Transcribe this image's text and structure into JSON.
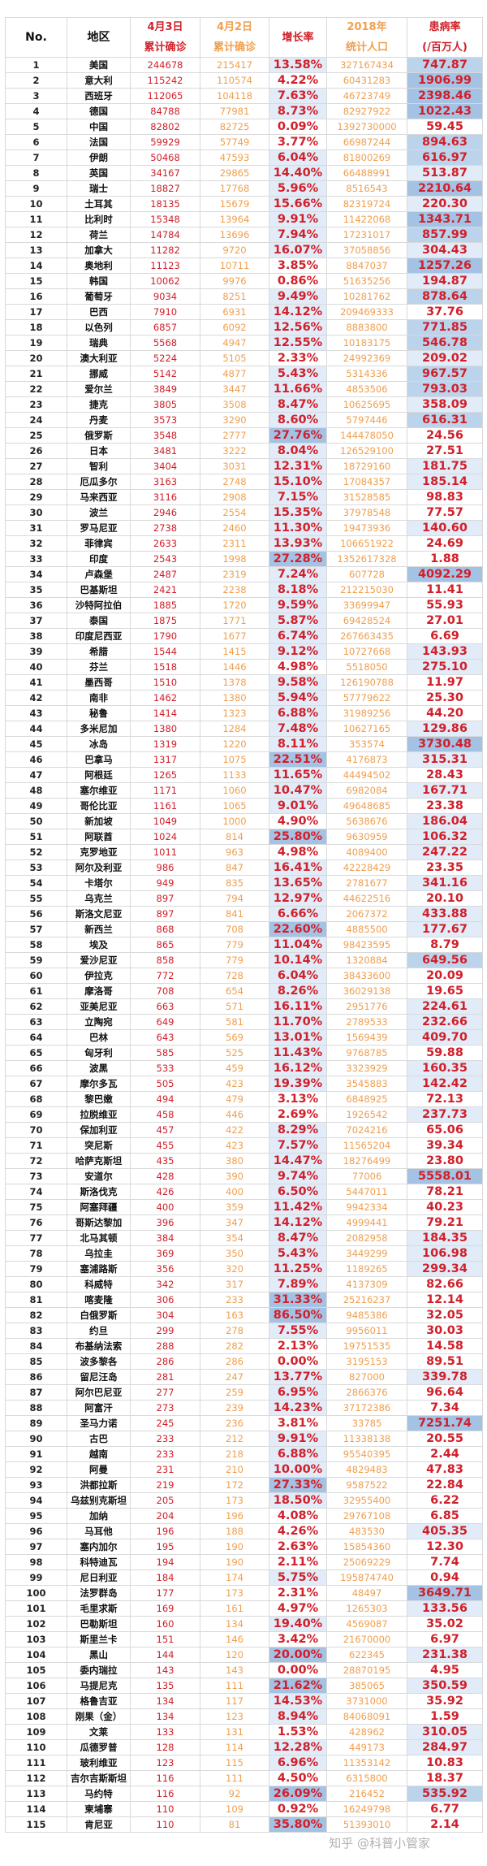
{
  "header": {
    "no": "No.",
    "region": "地区",
    "apr3_date": "4月3日",
    "apr3_label": "累计确诊",
    "apr2_date": "4月2日",
    "apr2_label": "累计确诊",
    "growth": "增长率",
    "pop_year": "2018年",
    "pop_label": "统计人口",
    "rate": "患病率",
    "rate_unit": "(/百万人)"
  },
  "colors": {
    "red_text": "#d0202a",
    "orange_text": "#ef9f4f",
    "shade_dark": "#a4c2e4",
    "shade_mid": "#bcd3ec",
    "shade_light": "#e1ecf8"
  },
  "columns": [
    "no",
    "region",
    "apr3_confirmed",
    "apr2_confirmed",
    "growth_rate",
    "population_2018",
    "cases_per_million"
  ],
  "rows": [
    [
      "1",
      "美国",
      "244678",
      "215417",
      "13.58%",
      "327167434",
      "747.87"
    ],
    [
      "2",
      "意大利",
      "115242",
      "110574",
      "4.22%",
      "60431283",
      "1906.99"
    ],
    [
      "3",
      "西班牙",
      "112065",
      "104118",
      "7.63%",
      "46723749",
      "2398.46"
    ],
    [
      "4",
      "德国",
      "84788",
      "77981",
      "8.73%",
      "82927922",
      "1022.43"
    ],
    [
      "5",
      "中国",
      "82802",
      "82725",
      "0.09%",
      "1392730000",
      "59.45"
    ],
    [
      "6",
      "法国",
      "59929",
      "57749",
      "3.77%",
      "66987244",
      "894.63"
    ],
    [
      "7",
      "伊朗",
      "50468",
      "47593",
      "6.04%",
      "81800269",
      "616.97"
    ],
    [
      "8",
      "英国",
      "34167",
      "29865",
      "14.40%",
      "66488991",
      "513.87"
    ],
    [
      "9",
      "瑞士",
      "18827",
      "17768",
      "5.96%",
      "8516543",
      "2210.64"
    ],
    [
      "10",
      "土耳其",
      "18135",
      "15679",
      "15.66%",
      "82319724",
      "220.30"
    ],
    [
      "11",
      "比利时",
      "15348",
      "13964",
      "9.91%",
      "11422068",
      "1343.71"
    ],
    [
      "12",
      "荷兰",
      "14784",
      "13696",
      "7.94%",
      "17231017",
      "857.99"
    ],
    [
      "13",
      "加拿大",
      "11282",
      "9720",
      "16.07%",
      "37058856",
      "304.43"
    ],
    [
      "14",
      "奥地利",
      "11123",
      "10711",
      "3.85%",
      "8847037",
      "1257.26"
    ],
    [
      "15",
      "韩国",
      "10062",
      "9976",
      "0.86%",
      "51635256",
      "194.87"
    ],
    [
      "16",
      "葡萄牙",
      "9034",
      "8251",
      "9.49%",
      "10281762",
      "878.64"
    ],
    [
      "17",
      "巴西",
      "7910",
      "6931",
      "14.12%",
      "209469333",
      "37.76"
    ],
    [
      "18",
      "以色列",
      "6857",
      "6092",
      "12.56%",
      "8883800",
      "771.85"
    ],
    [
      "19",
      "瑞典",
      "5568",
      "4947",
      "12.55%",
      "10183175",
      "546.78"
    ],
    [
      "20",
      "澳大利亚",
      "5224",
      "5105",
      "2.33%",
      "24992369",
      "209.02"
    ],
    [
      "21",
      "挪威",
      "5142",
      "4877",
      "5.43%",
      "5314336",
      "967.57"
    ],
    [
      "22",
      "爱尔兰",
      "3849",
      "3447",
      "11.66%",
      "4853506",
      "793.03"
    ],
    [
      "23",
      "捷克",
      "3805",
      "3508",
      "8.47%",
      "10625695",
      "358.09"
    ],
    [
      "24",
      "丹麦",
      "3573",
      "3290",
      "8.60%",
      "5797446",
      "616.31"
    ],
    [
      "25",
      "俄罗斯",
      "3548",
      "2777",
      "27.76%",
      "144478050",
      "24.56"
    ],
    [
      "26",
      "日本",
      "3481",
      "3222",
      "8.04%",
      "126529100",
      "27.51"
    ],
    [
      "27",
      "智利",
      "3404",
      "3031",
      "12.31%",
      "18729160",
      "181.75"
    ],
    [
      "28",
      "厄瓜多尔",
      "3163",
      "2748",
      "15.10%",
      "17084357",
      "185.14"
    ],
    [
      "29",
      "马来西亚",
      "3116",
      "2908",
      "7.15%",
      "31528585",
      "98.83"
    ],
    [
      "30",
      "波兰",
      "2946",
      "2554",
      "15.35%",
      "37978548",
      "77.57"
    ],
    [
      "31",
      "罗马尼亚",
      "2738",
      "2460",
      "11.30%",
      "19473936",
      "140.60"
    ],
    [
      "32",
      "菲律宾",
      "2633",
      "2311",
      "13.93%",
      "106651922",
      "24.69"
    ],
    [
      "33",
      "印度",
      "2543",
      "1998",
      "27.28%",
      "1352617328",
      "1.88"
    ],
    [
      "34",
      "卢森堡",
      "2487",
      "2319",
      "7.24%",
      "607728",
      "4092.29"
    ],
    [
      "35",
      "巴基斯坦",
      "2421",
      "2238",
      "8.18%",
      "212215030",
      "11.41"
    ],
    [
      "36",
      "沙特阿拉伯",
      "1885",
      "1720",
      "9.59%",
      "33699947",
      "55.93"
    ],
    [
      "37",
      "泰国",
      "1875",
      "1771",
      "5.87%",
      "69428524",
      "27.01"
    ],
    [
      "38",
      "印度尼西亚",
      "1790",
      "1677",
      "6.74%",
      "267663435",
      "6.69"
    ],
    [
      "39",
      "希腊",
      "1544",
      "1415",
      "9.12%",
      "10727668",
      "143.93"
    ],
    [
      "40",
      "芬兰",
      "1518",
      "1446",
      "4.98%",
      "5518050",
      "275.10"
    ],
    [
      "41",
      "墨西哥",
      "1510",
      "1378",
      "9.58%",
      "126190788",
      "11.97"
    ],
    [
      "42",
      "南非",
      "1462",
      "1380",
      "5.94%",
      "57779622",
      "25.30"
    ],
    [
      "43",
      "秘鲁",
      "1414",
      "1323",
      "6.88%",
      "31989256",
      "44.20"
    ],
    [
      "44",
      "多米尼加",
      "1380",
      "1284",
      "7.48%",
      "10627165",
      "129.86"
    ],
    [
      "45",
      "冰岛",
      "1319",
      "1220",
      "8.11%",
      "353574",
      "3730.48"
    ],
    [
      "46",
      "巴拿马",
      "1317",
      "1075",
      "22.51%",
      "4176873",
      "315.31"
    ],
    [
      "47",
      "阿根廷",
      "1265",
      "1133",
      "11.65%",
      "44494502",
      "28.43"
    ],
    [
      "48",
      "塞尔维亚",
      "1171",
      "1060",
      "10.47%",
      "6982084",
      "167.71"
    ],
    [
      "49",
      "哥伦比亚",
      "1161",
      "1065",
      "9.01%",
      "49648685",
      "23.38"
    ],
    [
      "50",
      "新加坡",
      "1049",
      "1000",
      "4.90%",
      "5638676",
      "186.04"
    ],
    [
      "51",
      "阿联酋",
      "1024",
      "814",
      "25.80%",
      "9630959",
      "106.32"
    ],
    [
      "52",
      "克罗地亚",
      "1011",
      "963",
      "4.98%",
      "4089400",
      "247.22"
    ],
    [
      "53",
      "阿尔及利亚",
      "986",
      "847",
      "16.41%",
      "42228429",
      "23.35"
    ],
    [
      "54",
      "卡塔尔",
      "949",
      "835",
      "13.65%",
      "2781677",
      "341.16"
    ],
    [
      "55",
      "乌克兰",
      "897",
      "794",
      "12.97%",
      "44622516",
      "20.10"
    ],
    [
      "56",
      "斯洛文尼亚",
      "897",
      "841",
      "6.66%",
      "2067372",
      "433.88"
    ],
    [
      "57",
      "新西兰",
      "868",
      "708",
      "22.60%",
      "4885500",
      "177.67"
    ],
    [
      "58",
      "埃及",
      "865",
      "779",
      "11.04%",
      "98423595",
      "8.79"
    ],
    [
      "59",
      "爱沙尼亚",
      "858",
      "779",
      "10.14%",
      "1320884",
      "649.56"
    ],
    [
      "60",
      "伊拉克",
      "772",
      "728",
      "6.04%",
      "38433600",
      "20.09"
    ],
    [
      "61",
      "摩洛哥",
      "708",
      "654",
      "8.26%",
      "36029138",
      "19.65"
    ],
    [
      "62",
      "亚美尼亚",
      "663",
      "571",
      "16.11%",
      "2951776",
      "224.61"
    ],
    [
      "63",
      "立陶宛",
      "649",
      "581",
      "11.70%",
      "2789533",
      "232.66"
    ],
    [
      "64",
      "巴林",
      "643",
      "569",
      "13.01%",
      "1569439",
      "409.70"
    ],
    [
      "65",
      "匈牙利",
      "585",
      "525",
      "11.43%",
      "9768785",
      "59.88"
    ],
    [
      "66",
      "波黑",
      "533",
      "459",
      "16.12%",
      "3323929",
      "160.35"
    ],
    [
      "67",
      "摩尔多瓦",
      "505",
      "423",
      "19.39%",
      "3545883",
      "142.42"
    ],
    [
      "68",
      "黎巴嫩",
      "494",
      "479",
      "3.13%",
      "6848925",
      "72.13"
    ],
    [
      "69",
      "拉脱维亚",
      "458",
      "446",
      "2.69%",
      "1926542",
      "237.73"
    ],
    [
      "70",
      "保加利亚",
      "457",
      "422",
      "8.29%",
      "7024216",
      "65.06"
    ],
    [
      "71",
      "突尼斯",
      "455",
      "423",
      "7.57%",
      "11565204",
      "39.34"
    ],
    [
      "72",
      "哈萨克斯坦",
      "435",
      "380",
      "14.47%",
      "18276499",
      "23.80"
    ],
    [
      "73",
      "安道尔",
      "428",
      "390",
      "9.74%",
      "77006",
      "5558.01"
    ],
    [
      "74",
      "斯洛伐克",
      "426",
      "400",
      "6.50%",
      "5447011",
      "78.21"
    ],
    [
      "75",
      "阿塞拜疆",
      "400",
      "359",
      "11.42%",
      "9942334",
      "40.23"
    ],
    [
      "76",
      "哥斯达黎加",
      "396",
      "347",
      "14.12%",
      "4999441",
      "79.21"
    ],
    [
      "77",
      "北马其顿",
      "384",
      "354",
      "8.47%",
      "2082958",
      "184.35"
    ],
    [
      "78",
      "乌拉圭",
      "369",
      "350",
      "5.43%",
      "3449299",
      "106.98"
    ],
    [
      "79",
      "塞浦路斯",
      "356",
      "320",
      "11.25%",
      "1189265",
      "299.34"
    ],
    [
      "80",
      "科威特",
      "342",
      "317",
      "7.89%",
      "4137309",
      "82.66"
    ],
    [
      "81",
      "喀麦隆",
      "306",
      "233",
      "31.33%",
      "25216237",
      "12.14"
    ],
    [
      "82",
      "白俄罗斯",
      "304",
      "163",
      "86.50%",
      "9485386",
      "32.05"
    ],
    [
      "83",
      "约旦",
      "299",
      "278",
      "7.55%",
      "9956011",
      "30.03"
    ],
    [
      "84",
      "布基纳法索",
      "288",
      "282",
      "2.13%",
      "19751535",
      "14.58"
    ],
    [
      "85",
      "波多黎各",
      "286",
      "286",
      "0.00%",
      "3195153",
      "89.51"
    ],
    [
      "86",
      "留尼汪岛",
      "281",
      "247",
      "13.77%",
      "827000",
      "339.78"
    ],
    [
      "87",
      "阿尔巴尼亚",
      "277",
      "259",
      "6.95%",
      "2866376",
      "96.64"
    ],
    [
      "88",
      "阿富汗",
      "273",
      "239",
      "14.23%",
      "37172386",
      "7.34"
    ],
    [
      "89",
      "圣马力诺",
      "245",
      "236",
      "3.81%",
      "33785",
      "7251.74"
    ],
    [
      "90",
      "古巴",
      "233",
      "212",
      "9.91%",
      "11338138",
      "20.55"
    ],
    [
      "91",
      "越南",
      "233",
      "218",
      "6.88%",
      "95540395",
      "2.44"
    ],
    [
      "92",
      "阿曼",
      "231",
      "210",
      "10.00%",
      "4829483",
      "47.83"
    ],
    [
      "93",
      "洪都拉斯",
      "219",
      "172",
      "27.33%",
      "9587522",
      "22.84"
    ],
    [
      "94",
      "乌兹别克斯坦",
      "205",
      "173",
      "18.50%",
      "32955400",
      "6.22"
    ],
    [
      "95",
      "加纳",
      "204",
      "196",
      "4.08%",
      "29767108",
      "6.85"
    ],
    [
      "96",
      "马耳他",
      "196",
      "188",
      "4.26%",
      "483530",
      "405.35"
    ],
    [
      "97",
      "塞内加尔",
      "195",
      "190",
      "2.63%",
      "15854360",
      "12.30"
    ],
    [
      "98",
      "科特迪瓦",
      "194",
      "190",
      "2.11%",
      "25069229",
      "7.74"
    ],
    [
      "99",
      "尼日利亚",
      "184",
      "174",
      "5.75%",
      "195874740",
      "0.94"
    ],
    [
      "100",
      "法罗群岛",
      "177",
      "173",
      "2.31%",
      "48497",
      "3649.71"
    ],
    [
      "101",
      "毛里求斯",
      "169",
      "161",
      "4.97%",
      "1265303",
      "133.56"
    ],
    [
      "102",
      "巴勒斯坦",
      "160",
      "134",
      "19.40%",
      "4569087",
      "35.02"
    ],
    [
      "103",
      "斯里兰卡",
      "151",
      "146",
      "3.42%",
      "21670000",
      "6.97"
    ],
    [
      "104",
      "黑山",
      "144",
      "120",
      "20.00%",
      "622345",
      "231.38"
    ],
    [
      "105",
      "委内瑞拉",
      "143",
      "143",
      "0.00%",
      "28870195",
      "4.95"
    ],
    [
      "106",
      "马提尼克",
      "135",
      "111",
      "21.62%",
      "385065",
      "350.59"
    ],
    [
      "107",
      "格鲁吉亚",
      "134",
      "117",
      "14.53%",
      "3731000",
      "35.92"
    ],
    [
      "108",
      "刚果（金）",
      "134",
      "123",
      "8.94%",
      "84068091",
      "1.59"
    ],
    [
      "109",
      "文莱",
      "133",
      "131",
      "1.53%",
      "428962",
      "310.05"
    ],
    [
      "110",
      "瓜德罗普",
      "128",
      "114",
      "12.28%",
      "449173",
      "284.97"
    ],
    [
      "111",
      "玻利维亚",
      "123",
      "115",
      "6.96%",
      "11353142",
      "10.83"
    ],
    [
      "112",
      "吉尔吉斯斯坦",
      "116",
      "111",
      "4.50%",
      "6315800",
      "18.37"
    ],
    [
      "113",
      "马约特",
      "116",
      "92",
      "26.09%",
      "216452",
      "535.92"
    ],
    [
      "114",
      "柬埔寨",
      "110",
      "109",
      "0.92%",
      "16249798",
      "6.77"
    ],
    [
      "115",
      "肯尼亚",
      "110",
      "81",
      "35.80%",
      "51393010",
      "2.14"
    ]
  ],
  "watermark": "知乎 @科普小管家"
}
